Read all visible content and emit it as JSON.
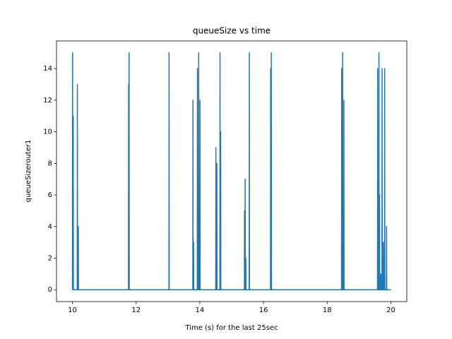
{
  "chart_data": {
    "type": "line",
    "title": "queueSize vs time",
    "xlabel": "Time (s) for the last 25sec",
    "ylabel": "queueSizerouter1",
    "x": [
      10.0,
      10.005,
      10.01,
      10.02,
      10.025,
      10.03,
      10.15,
      10.155,
      10.16,
      10.18,
      10.185,
      10.19,
      11.76,
      11.765,
      11.77,
      11.775,
      11.78,
      11.785,
      13.03,
      13.035,
      13.04,
      13.78,
      13.785,
      13.79,
      13.8,
      13.805,
      13.81,
      13.92,
      13.925,
      13.93,
      13.96,
      13.965,
      13.97,
      14.0,
      14.005,
      14.01,
      14.5,
      14.505,
      14.51,
      14.53,
      14.535,
      14.54,
      14.63,
      14.635,
      14.64,
      14.65,
      14.655,
      14.66,
      15.4,
      15.405,
      15.41,
      15.42,
      15.425,
      15.43,
      15.44,
      15.445,
      15.45,
      15.55,
      15.555,
      15.56,
      16.22,
      16.225,
      16.23,
      16.24,
      16.245,
      16.25,
      18.45,
      18.455,
      18.46,
      18.48,
      18.485,
      18.49,
      18.52,
      18.525,
      18.53,
      19.58,
      19.585,
      19.59,
      19.62,
      19.625,
      19.63,
      19.64,
      19.645,
      19.65,
      19.68,
      19.685,
      19.69,
      19.72,
      19.725,
      19.73,
      19.76,
      19.765,
      19.77,
      19.8,
      19.805,
      19.81,
      19.86,
      19.865,
      19.87,
      20.0
    ],
    "series": [
      {
        "name": "queueSizerouter1",
        "color": "#1f77b4",
        "values": [
          0,
          15,
          0,
          0,
          11,
          0,
          0,
          13,
          0,
          0,
          4,
          0,
          0,
          13,
          0,
          0,
          15,
          0,
          0,
          15,
          0,
          0,
          12,
          0,
          0,
          3,
          0,
          0,
          14,
          0,
          0,
          15,
          0,
          0,
          12,
          0,
          0,
          9,
          0,
          0,
          8,
          0,
          0,
          15,
          0,
          0,
          10,
          0,
          0,
          5,
          0,
          0,
          7,
          0,
          0,
          2,
          0,
          0,
          15,
          0,
          0,
          14,
          0,
          0,
          15,
          0,
          0,
          14,
          0,
          0,
          15,
          0,
          0,
          12,
          0,
          0,
          14,
          0,
          0,
          15,
          0,
          0,
          6,
          0,
          0,
          1,
          0,
          0,
          14,
          0,
          0,
          3,
          0,
          0,
          14,
          0,
          0,
          4,
          0,
          0
        ]
      }
    ],
    "xlim": [
      9.5,
      20.5
    ],
    "ylim": [
      -0.75,
      15.75
    ],
    "xticks": [
      10,
      12,
      14,
      16,
      18,
      20
    ],
    "yticks": [
      0,
      2,
      4,
      6,
      8,
      10,
      12,
      14
    ]
  }
}
